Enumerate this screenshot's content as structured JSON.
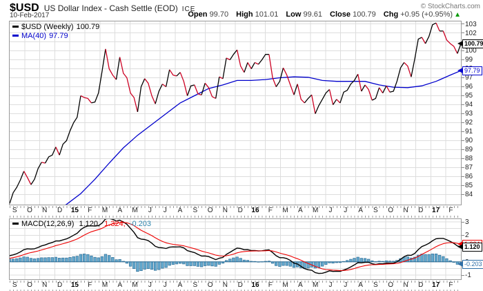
{
  "header": {
    "symbol": "$USD",
    "title": "US Dollar Index - Cash Settle (EOD)",
    "exchange": "ICE",
    "copyright": "© StockCharts.com",
    "date": "10-Feb-2017",
    "quote": {
      "items": [
        {
          "label": "Open",
          "value": "99.70"
        },
        {
          "label": "High",
          "value": "101.01"
        },
        {
          "label": "Low",
          "value": "99.61"
        },
        {
          "label": "Close",
          "value": "100.79"
        },
        {
          "label": "Chg",
          "value": "+0.95 (+0.95%)"
        }
      ],
      "arrow": "▲",
      "arrow_color": "#009900"
    }
  },
  "chart_data": [
    {
      "type": "line",
      "panel": "price",
      "legend": [
        {
          "label": "$USD (Weekly)",
          "value": "100.79",
          "color": "#000000"
        },
        {
          "label": "MA(40)",
          "value": "97.79",
          "color": "#0000CC"
        }
      ],
      "x_months": [
        "S",
        "O",
        "N",
        "D",
        "15",
        "F",
        "M",
        "A",
        "M",
        "J",
        "J",
        "A",
        "S",
        "O",
        "N",
        "D",
        "16",
        "F",
        "M",
        "A",
        "M",
        "J",
        "J",
        "A",
        "S",
        "O",
        "N",
        "D",
        "17",
        "F"
      ],
      "year_labels": [
        "15",
        "16",
        "17"
      ],
      "ylim": [
        82.88,
        103.27
      ],
      "yticks": [
        84,
        85,
        86,
        87,
        88,
        89,
        90,
        91,
        92,
        93,
        94,
        95,
        96,
        97,
        98,
        99,
        100,
        101,
        102,
        103
      ],
      "grid": true,
      "up_color": "#000000",
      "down_color": "#CC0022",
      "ma_color": "#0000CC",
      "weekly_close": [
        83.0,
        84.2,
        84.8,
        85.6,
        86.6,
        85.9,
        85.1,
        85.7,
        86.9,
        87.6,
        87.5,
        88.2,
        88.4,
        89.3,
        88.4,
        89.6,
        90.0,
        91.1,
        92.0,
        92.6,
        95.0,
        94.8,
        94.7,
        94.2,
        94.3,
        95.3,
        97.7,
        100.2,
        98.0,
        97.3,
        96.8,
        99.3,
        97.5,
        97.0,
        95.3,
        94.8,
        93.2,
        96.0,
        96.9,
        96.4,
        95.0,
        94.1,
        95.5,
        96.3,
        96.0,
        97.9,
        97.3,
        97.2,
        97.6,
        96.6,
        95.0,
        96.1,
        96.2,
        95.2,
        95.1,
        96.4,
        95.9,
        94.9,
        94.7,
        97.1,
        96.9,
        99.2,
        99.0,
        99.6,
        100.1,
        98.3,
        97.6,
        98.7,
        98.0,
        98.7,
        98.5,
        99.0,
        99.6,
        99.6,
        97.0,
        96.0,
        96.6,
        98.1,
        97.3,
        96.2,
        95.1,
        96.3,
        94.6,
        94.2,
        94.7,
        95.1,
        93.0,
        93.9,
        94.6,
        95.3,
        95.7,
        94.0,
        94.6,
        94.2,
        95.4,
        95.6,
        96.3,
        96.7,
        97.4,
        95.5,
        96.2,
        95.7,
        94.5,
        94.7,
        95.9,
        95.3,
        96.1,
        95.4,
        95.5,
        96.6,
        98.1,
        98.7,
        98.3,
        97.1,
        99.1,
        101.3,
        101.5,
        100.8,
        101.6,
        102.9,
        103.1,
        102.2,
        102.2,
        101.2,
        100.8,
        100.5,
        99.7,
        100.79
      ],
      "ma40_anchors": {
        "weeks": [
          0,
          4,
          8,
          12,
          16,
          20,
          24,
          28,
          32,
          36,
          40,
          44,
          48,
          52,
          56,
          60,
          64,
          68,
          72,
          76,
          80,
          84,
          88,
          92,
          96,
          100,
          104,
          108,
          112,
          116,
          120,
          124,
          127
        ],
        "values": [
          80.5,
          81.0,
          81.5,
          82.1,
          82.9,
          84.1,
          85.7,
          87.5,
          89.2,
          90.6,
          91.8,
          93.0,
          94.2,
          95.0,
          95.8,
          96.2,
          96.7,
          96.7,
          96.8,
          97.0,
          97.1,
          97.05,
          96.7,
          96.6,
          96.6,
          96.6,
          96.2,
          95.95,
          95.9,
          96.1,
          96.6,
          97.3,
          97.79
        ]
      },
      "badges": [
        {
          "text": "100.79",
          "value": 100.79,
          "color": "#000000"
        },
        {
          "text": "97.79",
          "value": 97.79,
          "color": "#0000CC"
        }
      ]
    },
    {
      "type": "bar",
      "panel": "macd",
      "legend_label": "MACD(12,26,9)",
      "values_display": [
        "1.120,",
        "1.324,",
        "-0.203"
      ],
      "values": [
        1.12,
        1.324,
        -0.203
      ],
      "value_colors": [
        "#000000",
        "#EE0000",
        "#2E86AE"
      ],
      "params": {
        "fast": 12,
        "slow": 26,
        "signal": 9
      },
      "ylim": [
        -1.31,
        3.21
      ],
      "yticks": [
        3,
        2,
        1,
        0,
        -1
      ],
      "grid_step": 0.5,
      "macd_color": "#000000",
      "signal_color": "#EE0000",
      "hist_fill": "#64A9CE",
      "hist_stroke": "#2F6E96",
      "badges": [
        {
          "text": "1.324",
          "value": 1.324,
          "color": "#EE0000"
        },
        {
          "text": "1.120",
          "value": 1.12,
          "color": "#000000"
        },
        {
          "text": "-0.203",
          "value": -0.203,
          "color": "#2E6EA6"
        }
      ]
    }
  ]
}
